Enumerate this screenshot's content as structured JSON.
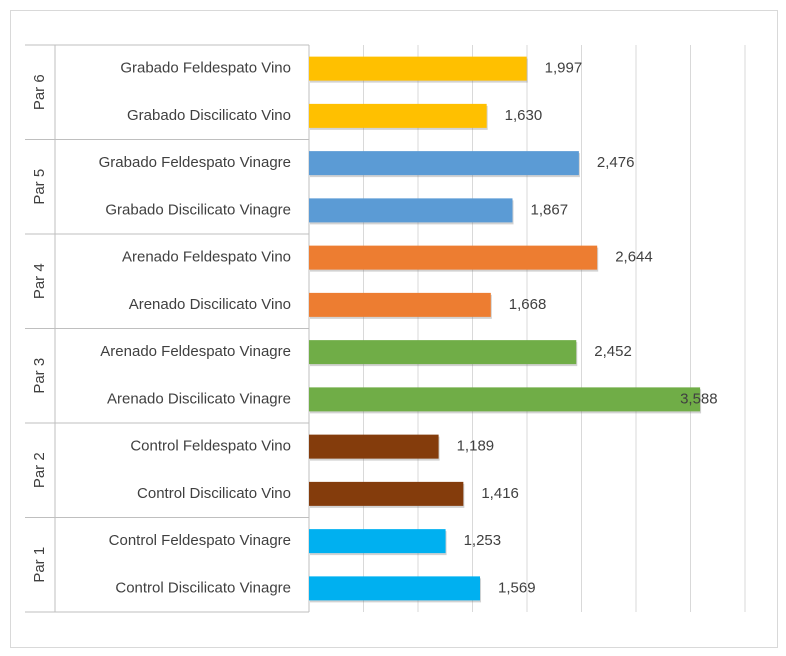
{
  "chart_data": {
    "type": "bar",
    "orientation": "horizontal",
    "title": "",
    "xlabel": "",
    "ylabel": "",
    "xlim": [
      0,
      4
    ],
    "grid": true,
    "legend": "none",
    "groups": [
      {
        "name": "Par 6",
        "color": "#FFC000",
        "items": [
          {
            "category": "Grabado Feldespato Vino",
            "value": 1.997,
            "label": "1,997"
          },
          {
            "category": "Grabado  Discilicato Vino",
            "value": 1.63,
            "label": "1,630"
          }
        ]
      },
      {
        "name": "Par 5",
        "color": "#5B9BD5",
        "items": [
          {
            "category": "Grabado Feldespato Vinagre",
            "value": 2.476,
            "label": "2,476"
          },
          {
            "category": "Grabado  Discilicato Vinagre",
            "value": 1.867,
            "label": "1,867"
          }
        ]
      },
      {
        "name": "Par 4",
        "color": "#ED7D31",
        "items": [
          {
            "category": "Arenado Feldespato Vino",
            "value": 2.644,
            "label": "2,644"
          },
          {
            "category": "Arenado  Discilicato Vino",
            "value": 1.668,
            "label": "1,668"
          }
        ]
      },
      {
        "name": "Par 3",
        "color": "#70AD47",
        "items": [
          {
            "category": "Arenado Feldespato Vinagre",
            "value": 2.452,
            "label": "2,452"
          },
          {
            "category": "Arenado  Discilicato Vinagre",
            "value": 3.588,
            "label": "3,588"
          }
        ]
      },
      {
        "name": "Par 2",
        "color": "#843C0C",
        "items": [
          {
            "category": "Control Feldespato Vino",
            "value": 1.189,
            "label": "1,189"
          },
          {
            "category": "Control  Discilicato Vino",
            "value": 1.416,
            "label": "1,416"
          }
        ]
      },
      {
        "name": "Par 1",
        "color": "#00B0F0",
        "items": [
          {
            "category": "Control Feldespato Vinagre",
            "value": 1.253,
            "label": "1,253"
          },
          {
            "category": "Control  Discilicato Vinagre",
            "value": 1.569,
            "label": "1,569"
          }
        ]
      }
    ]
  }
}
